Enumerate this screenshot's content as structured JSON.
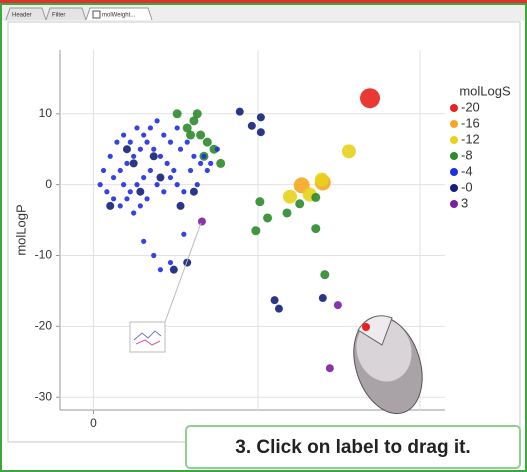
{
  "tabs": [
    "Header",
    "Filter",
    "molWeight..."
  ],
  "callout": "3. Click on label to drag it.",
  "chart_data": {
    "type": "scatter",
    "ylabel": "molLogP",
    "legend_title": "molLogS",
    "xlim": [
      -100,
      1050
    ],
    "ylim": [
      -31.8,
      19
    ],
    "xticks": [
      0
    ],
    "yticks": [
      10,
      0,
      -10,
      -20,
      -30
    ],
    "grid": true,
    "series": [
      {
        "name": "-20",
        "color": "#e8231f",
        "size": 10,
        "x": [
          826
        ],
        "values": [
          12.2
        ]
      },
      {
        "name": "-16",
        "color": "#f5a623",
        "size": 8,
        "x": [
          622,
          685
        ],
        "values": [
          -0.1,
          0.3
        ]
      },
      {
        "name": "-12",
        "color": "#e8d21a",
        "size": 7,
        "x": [
          763,
          682,
          646,
          587
        ],
        "values": [
          4.7,
          0.7,
          -1.4,
          -1.7
        ]
      },
      {
        "name": "-8",
        "color": "#2e8b2e",
        "size": 4.5,
        "x": [
          664,
          616,
          578,
          520,
          497,
          485,
          664,
          691,
          280,
          300,
          320,
          340,
          360,
          310,
          330,
          380,
          250,
          290
        ],
        "values": [
          -1.8,
          -2.7,
          -4,
          -4.7,
          -2.4,
          -6.5,
          -6.2,
          -12.7,
          8,
          9,
          7,
          6,
          5,
          10,
          4,
          3,
          10,
          7
        ]
      },
      {
        "name": "-4",
        "color": "#1f2fe0",
        "size": 2.6,
        "x": [
          60,
          80,
          100,
          120,
          140,
          160,
          180,
          200,
          220,
          240,
          260,
          280,
          300,
          320,
          340,
          90,
          110,
          130,
          150,
          170,
          190,
          210,
          230,
          250,
          270,
          290,
          310,
          330,
          350,
          370,
          60,
          80,
          100,
          120,
          140,
          160,
          40,
          20,
          30,
          50,
          70,
          90,
          110,
          130,
          150,
          170,
          190,
          210,
          230,
          250,
          150,
          180,
          200,
          230,
          270
        ],
        "values": [
          1,
          2,
          3,
          4,
          5,
          6,
          5,
          4,
          3,
          2,
          5,
          6,
          4,
          3,
          2,
          0,
          -1,
          0,
          1,
          2,
          0,
          -1,
          1,
          0,
          -1,
          2,
          0,
          4,
          3,
          5,
          -2,
          -3,
          -2,
          -4,
          -3,
          -2,
          -1,
          0,
          2,
          4,
          6,
          7,
          6,
          8,
          7,
          8,
          9,
          7,
          6,
          8,
          -8,
          -10,
          -12,
          -11,
          -7
        ]
      },
      {
        "name": "-0",
        "color": "#14207a",
        "size": 4,
        "x": [
          437,
          500,
          500,
          473,
          685,
          541,
          554,
          120,
          200,
          140,
          260,
          300,
          180,
          100,
          50,
          280,
          240
        ],
        "values": [
          10.3,
          9.5,
          7.4,
          8.3,
          -16,
          -16.3,
          -17.5,
          3,
          1,
          -1,
          -3,
          -1,
          4,
          5,
          -3,
          -11,
          -12
        ]
      },
      {
        "name": "3",
        "color": "#7b1fa2",
        "size": 4,
        "x": [
          730,
          706,
          324
        ],
        "values": [
          -17,
          -25.9,
          -5.2
        ]
      }
    ]
  }
}
